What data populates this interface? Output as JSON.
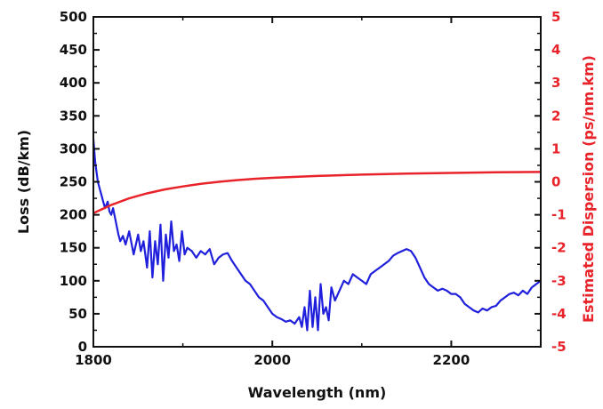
{
  "chart_data": {
    "type": "line",
    "xlabel": "Wavelength (nm)",
    "ylabel_left": "Loss (dB/km)",
    "ylabel_right": "Estimated Dispersion (ps/nm.km)",
    "xlim": [
      1800,
      2300
    ],
    "ylim_left": [
      0,
      500
    ],
    "ylim_right": [
      -5,
      5
    ],
    "x_ticks": [
      "1800",
      "2000",
      "2200"
    ],
    "x_tick_values": [
      1800,
      2000,
      2200
    ],
    "y_left_ticks": [
      "0",
      "50",
      "100",
      "150",
      "200",
      "250",
      "300",
      "350",
      "400",
      "450",
      "500"
    ],
    "y_left_tick_values": [
      0,
      50,
      100,
      150,
      200,
      250,
      300,
      350,
      400,
      450,
      500
    ],
    "y_right_ticks": [
      "-5",
      "-4",
      "-3",
      "-2",
      "-1",
      "0",
      "1",
      "2",
      "3",
      "4",
      "5"
    ],
    "y_right_tick_values": [
      -5,
      -4,
      -3,
      -2,
      -1,
      0,
      1,
      2,
      3,
      4,
      5
    ],
    "grid": false,
    "colors": {
      "loss": "#1f1fdc",
      "dispersion": "#e8232a",
      "axis": "#111111",
      "right_axis": "#e8232a"
    },
    "series": [
      {
        "axis": "left",
        "color": "#1f1fdc",
        "x": [
          1800,
          1802,
          1805,
          1808,
          1810,
          1813,
          1816,
          1818,
          1820,
          1822,
          1825,
          1828,
          1830,
          1833,
          1836,
          1840,
          1845,
          1850,
          1853,
          1856,
          1860,
          1863,
          1866,
          1869,
          1872,
          1875,
          1878,
          1881,
          1884,
          1887,
          1890,
          1893,
          1896,
          1899,
          1902,
          1905,
          1910,
          1915,
          1920,
          1925,
          1930,
          1935,
          1940,
          1945,
          1950,
          1955,
          1960,
          1965,
          1970,
          1975,
          1980,
          1985,
          1990,
          1995,
          2000,
          2005,
          2010,
          2015,
          2020,
          2025,
          2030,
          2033,
          2036,
          2039,
          2042,
          2045,
          2048,
          2051,
          2054,
          2057,
          2060,
          2063,
          2066,
          2070,
          2075,
          2080,
          2085,
          2090,
          2095,
          2100,
          2105,
          2110,
          2115,
          2120,
          2125,
          2130,
          2135,
          2140,
          2145,
          2150,
          2155,
          2160,
          2165,
          2170,
          2175,
          2180,
          2185,
          2190,
          2195,
          2200,
          2205,
          2210,
          2215,
          2220,
          2225,
          2230,
          2235,
          2240,
          2245,
          2250,
          2255,
          2260,
          2265,
          2270,
          2275,
          2280,
          2285,
          2290,
          2295,
          2300
        ],
        "values": [
          315,
          280,
          250,
          235,
          225,
          210,
          220,
          205,
          200,
          210,
          190,
          170,
          160,
          168,
          155,
          175,
          140,
          170,
          145,
          160,
          120,
          175,
          105,
          160,
          125,
          185,
          100,
          170,
          135,
          190,
          145,
          155,
          130,
          175,
          140,
          150,
          145,
          135,
          145,
          140,
          148,
          125,
          135,
          140,
          142,
          130,
          120,
          110,
          100,
          95,
          85,
          75,
          70,
          60,
          50,
          45,
          42,
          38,
          40,
          35,
          45,
          30,
          60,
          25,
          85,
          30,
          75,
          25,
          95,
          50,
          60,
          40,
          90,
          70,
          85,
          100,
          95,
          110,
          105,
          100,
          95,
          110,
          115,
          120,
          125,
          130,
          138,
          142,
          145,
          148,
          145,
          135,
          120,
          105,
          95,
          90,
          85,
          88,
          85,
          80,
          80,
          75,
          65,
          60,
          55,
          52,
          58,
          55,
          60,
          62,
          70,
          75,
          80,
          82,
          78,
          85,
          80,
          90,
          95,
          100
        ]
      },
      {
        "axis": "right",
        "color": "#e8232a",
        "x": [
          1800,
          1820,
          1840,
          1860,
          1880,
          1900,
          1920,
          1940,
          1960,
          1980,
          2000,
          2050,
          2100,
          2150,
          2200,
          2250,
          2300
        ],
        "values": [
          -0.95,
          -0.7,
          -0.5,
          -0.35,
          -0.23,
          -0.14,
          -0.06,
          0.0,
          0.05,
          0.09,
          0.12,
          0.18,
          0.22,
          0.25,
          0.27,
          0.29,
          0.3
        ]
      }
    ]
  }
}
